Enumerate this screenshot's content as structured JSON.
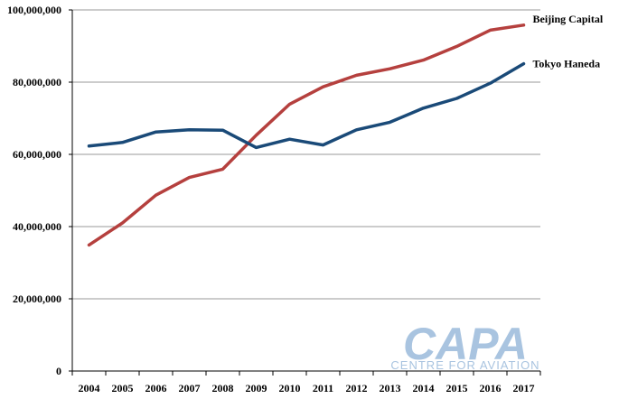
{
  "chart_data": {
    "type": "line",
    "title": "",
    "xlabel": "",
    "ylabel": "",
    "categories": [
      "2004",
      "2005",
      "2006",
      "2007",
      "2008",
      "2009",
      "2010",
      "2011",
      "2012",
      "2013",
      "2014",
      "2015",
      "2016",
      "2017"
    ],
    "ylim": [
      0,
      100000000
    ],
    "y_ticks": [
      0,
      20000000,
      40000000,
      60000000,
      80000000,
      100000000
    ],
    "y_tick_labels": [
      "0",
      "20,000,000",
      "40,000,000",
      "60,000,000",
      "80,000,000",
      "100,000,000"
    ],
    "grid": "horizontal",
    "legend": "end-of-line labels",
    "series": [
      {
        "name": "Beijing Capital",
        "color": "#b5403e",
        "values": [
          34900000,
          41000000,
          48700000,
          53600000,
          55900000,
          65300000,
          73900000,
          78700000,
          81900000,
          83700000,
          86100000,
          89900000,
          94400000,
          95800000
        ]
      },
      {
        "name": "Tokyo Haneda",
        "color": "#1a4a78",
        "values": [
          62300000,
          63300000,
          66200000,
          66800000,
          66700000,
          61900000,
          64200000,
          62600000,
          66800000,
          68900000,
          72800000,
          75500000,
          79700000,
          85100000
        ]
      }
    ]
  },
  "watermark": {
    "logo_text": "CAPA",
    "tagline": "CENTRE FOR AVIATION",
    "color": "#a9c4e0"
  }
}
